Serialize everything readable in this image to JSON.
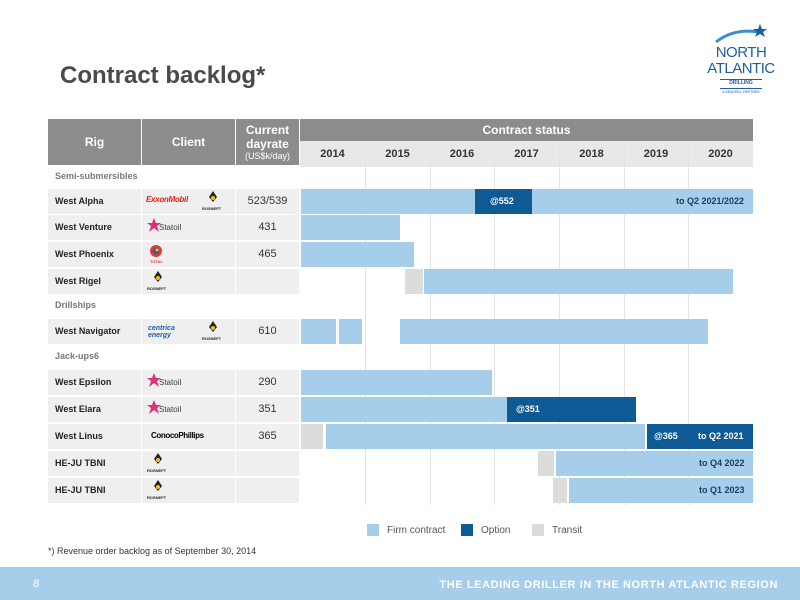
{
  "title": "Contract backlog*",
  "logo": {
    "line1": "NORTH",
    "line2": "ATLANTIC",
    "line3": "DRILLING",
    "line4": "A SEADRILL PARTNER"
  },
  "table": {
    "col_rig": "Rig",
    "col_client": "Client",
    "col_dayrate": "Current dayrate",
    "col_dayrate_unit": "(US$k/day)",
    "col_status": "Contract status",
    "years": [
      "2014",
      "2015",
      "2016",
      "2017",
      "2018",
      "2019",
      "2020"
    ]
  },
  "sections": {
    "semi": "Semi-submersibles",
    "drillships": "Drillships",
    "jackups": "Jack-ups6"
  },
  "rows": {
    "west_alpha": {
      "rig": "West Alpha",
      "dayrate": "523/539",
      "clients": [
        "ExxonMobil",
        "ROSNEFT"
      ],
      "option_label": "@552",
      "end_label": "to Q2 2021/2022"
    },
    "west_venture": {
      "rig": "West Venture",
      "dayrate": "431",
      "clients": [
        "Statoil"
      ]
    },
    "west_phoenix": {
      "rig": "West Phoenix",
      "dayrate": "465",
      "clients": [
        "TOTAL"
      ]
    },
    "west_rigel": {
      "rig": "West Rigel",
      "dayrate": "",
      "clients": [
        "ROSNEFT"
      ]
    },
    "west_navigator": {
      "rig": "West Navigator",
      "dayrate": "610",
      "clients": [
        "centrica energy",
        "ROSNEFT"
      ]
    },
    "west_epsilon": {
      "rig": "West Epsilon",
      "dayrate": "290",
      "clients": [
        "Statoil"
      ]
    },
    "west_elara": {
      "rig": "West Elara",
      "dayrate": "351",
      "clients": [
        "Statoil"
      ],
      "option_label": "@351"
    },
    "west_linus": {
      "rig": "West Linus",
      "dayrate": "365",
      "clients": [
        "ConocoPhillips"
      ],
      "option_label": "@365",
      "end_label": "to Q2 2021"
    },
    "heju1": {
      "rig": "HE-JU TBNI",
      "dayrate": "",
      "clients": [
        "ROSNEFT"
      ],
      "end_label": "to Q4 2022"
    },
    "heju2": {
      "rig": "HE-JU TBNI",
      "dayrate": "",
      "clients": [
        "ROSNEFT"
      ],
      "end_label": "to Q1 2023"
    }
  },
  "legend": {
    "firm": "Firm contract",
    "option": "Option",
    "transit": "Transit"
  },
  "colors": {
    "firm": "#a6cdea",
    "option": "#0d5a94",
    "transit": "#dcdcdc",
    "header": "#8c8c8c",
    "footer": "#a6cdea"
  },
  "footnote": "*) Revenue order backlog as of September 30, 2014",
  "footer": {
    "page": "8",
    "tagline": "THE LEADING DRILLER IN THE NORTH ATLANTIC REGION"
  }
}
